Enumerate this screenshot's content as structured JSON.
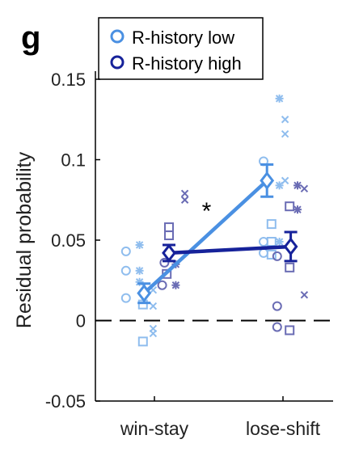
{
  "panel_label": "g",
  "chart_data": {
    "type": "scatter",
    "ylabel": "Residual probability",
    "xlabel": "",
    "categories": [
      "win-stay",
      "lose-shift"
    ],
    "ylim": [
      -0.05,
      0.15
    ],
    "yticks": [
      -0.05,
      0,
      0.05,
      0.1,
      0.15
    ],
    "ytick_labels": [
      "-0.05",
      "0",
      "0.05",
      "0.1",
      "0.15"
    ],
    "reference_line": {
      "y": 0,
      "style": "dashed"
    },
    "legend_placement": "top-left",
    "annotation": {
      "text": "*",
      "between": [
        "win-stay",
        "lose-shift"
      ],
      "y": 0.073
    },
    "series": [
      {
        "name": "R-history low",
        "color": "#4A90E2",
        "marker_color": "#8FBDEE",
        "means": [
          0.017,
          0.087
        ],
        "errors": [
          0.006,
          0.01
        ],
        "points": [
          {
            "cat": 0,
            "x_offset": -0.18,
            "y": 0.043,
            "marker": "circle"
          },
          {
            "cat": 0,
            "x_offset": -0.18,
            "y": 0.031,
            "marker": "circle"
          },
          {
            "cat": 0,
            "x_offset": -0.18,
            "y": 0.014,
            "marker": "circle"
          },
          {
            "cat": 0,
            "x_offset": -0.06,
            "y": 0.047,
            "marker": "asterisk"
          },
          {
            "cat": 0,
            "x_offset": -0.06,
            "y": 0.031,
            "marker": "asterisk"
          },
          {
            "cat": 0,
            "x_offset": -0.06,
            "y": 0.024,
            "marker": "asterisk"
          },
          {
            "cat": 0,
            "x_offset": 0.06,
            "y": 0.019,
            "marker": "x"
          },
          {
            "cat": 0,
            "x_offset": 0.06,
            "y": 0.009,
            "marker": "x"
          },
          {
            "cat": 0,
            "x_offset": 0.06,
            "y": -0.005,
            "marker": "x"
          },
          {
            "cat": 0,
            "x_offset": 0.06,
            "y": -0.008,
            "marker": "x"
          },
          {
            "cat": 0,
            "x_offset": -0.03,
            "y": 0.01,
            "marker": "square"
          },
          {
            "cat": 0,
            "x_offset": -0.03,
            "y": -0.013,
            "marker": "square"
          },
          {
            "cat": 1,
            "x_offset": -0.1,
            "y": 0.099,
            "marker": "circle"
          },
          {
            "cat": 1,
            "x_offset": -0.1,
            "y": 0.049,
            "marker": "circle"
          },
          {
            "cat": 1,
            "x_offset": -0.1,
            "y": 0.042,
            "marker": "circle"
          },
          {
            "cat": 1,
            "x_offset": 0.04,
            "y": 0.138,
            "marker": "asterisk"
          },
          {
            "cat": 1,
            "x_offset": 0.04,
            "y": 0.084,
            "marker": "asterisk"
          },
          {
            "cat": 1,
            "x_offset": 0.04,
            "y": 0.049,
            "marker": "asterisk"
          },
          {
            "cat": 1,
            "x_offset": 0.09,
            "y": 0.125,
            "marker": "x"
          },
          {
            "cat": 1,
            "x_offset": 0.09,
            "y": 0.116,
            "marker": "x"
          },
          {
            "cat": 1,
            "x_offset": 0.09,
            "y": 0.087,
            "marker": "x"
          },
          {
            "cat": 1,
            "x_offset": -0.03,
            "y": 0.06,
            "marker": "square"
          },
          {
            "cat": 1,
            "x_offset": -0.03,
            "y": 0.049,
            "marker": "square"
          },
          {
            "cat": 1,
            "x_offset": -0.03,
            "y": 0.041,
            "marker": "square"
          }
        ]
      },
      {
        "name": "R-history high",
        "color": "#16229A",
        "marker_color": "#6A6CB4",
        "means": [
          0.042,
          0.046
        ],
        "errors": [
          0.005,
          0.009
        ],
        "points": [
          {
            "cat": 0,
            "x_offset": 0.16,
            "y": 0.036,
            "marker": "circle"
          },
          {
            "cat": 0,
            "x_offset": 0.14,
            "y": 0.022,
            "marker": "circle"
          },
          {
            "cat": 0,
            "x_offset": 0.26,
            "y": 0.035,
            "marker": "asterisk"
          },
          {
            "cat": 0,
            "x_offset": 0.26,
            "y": 0.022,
            "marker": "asterisk"
          },
          {
            "cat": 0,
            "x_offset": 0.34,
            "y": 0.079,
            "marker": "x"
          },
          {
            "cat": 0,
            "x_offset": 0.34,
            "y": 0.075,
            "marker": "x"
          },
          {
            "cat": 0,
            "x_offset": 0.2,
            "y": 0.058,
            "marker": "square"
          },
          {
            "cat": 0,
            "x_offset": 0.2,
            "y": 0.053,
            "marker": "square"
          },
          {
            "cat": 0,
            "x_offset": 0.18,
            "y": 0.029,
            "marker": "square"
          },
          {
            "cat": 1,
            "x_offset": 0.02,
            "y": 0.04,
            "marker": "circle"
          },
          {
            "cat": 1,
            "x_offset": 0.02,
            "y": 0.009,
            "marker": "circle"
          },
          {
            "cat": 1,
            "x_offset": 0.02,
            "y": -0.004,
            "marker": "circle"
          },
          {
            "cat": 1,
            "x_offset": 0.2,
            "y": 0.084,
            "marker": "asterisk"
          },
          {
            "cat": 1,
            "x_offset": 0.2,
            "y": 0.069,
            "marker": "asterisk"
          },
          {
            "cat": 1,
            "x_offset": 0.26,
            "y": 0.082,
            "marker": "x"
          },
          {
            "cat": 1,
            "x_offset": 0.26,
            "y": 0.016,
            "marker": "x"
          },
          {
            "cat": 1,
            "x_offset": 0.13,
            "y": 0.071,
            "marker": "square"
          },
          {
            "cat": 1,
            "x_offset": 0.13,
            "y": 0.033,
            "marker": "square"
          },
          {
            "cat": 1,
            "x_offset": 0.13,
            "y": -0.006,
            "marker": "square"
          }
        ]
      }
    ]
  }
}
